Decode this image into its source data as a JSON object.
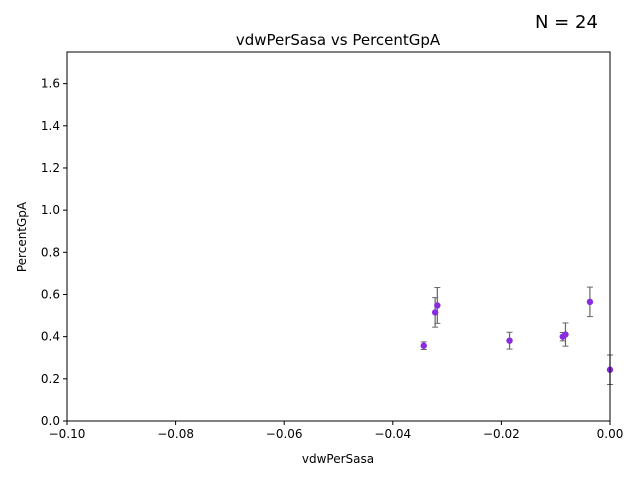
{
  "annotation": "N = 24",
  "chart_data": {
    "type": "scatter",
    "title": "vdwPerSasa vs PercentGpA",
    "xlabel": "vdwPerSasa",
    "ylabel": "PercentGpA",
    "xlim": [
      -0.1,
      0.0
    ],
    "ylim": [
      0.0,
      1.75
    ],
    "xticks": [
      -0.1,
      -0.08,
      -0.06,
      -0.04,
      -0.02,
      0.0
    ],
    "xtick_labels": [
      "−0.10",
      "−0.08",
      "−0.06",
      "−0.04",
      "−0.02",
      "0.00"
    ],
    "yticks": [
      0.0,
      0.2,
      0.4,
      0.6,
      0.8,
      1.0,
      1.2,
      1.4,
      1.6
    ],
    "ytick_labels": [
      "0.0",
      "0.2",
      "0.4",
      "0.6",
      "0.8",
      "1.0",
      "1.2",
      "1.4",
      "1.6"
    ],
    "grid": false,
    "points": [
      {
        "x": -0.0343,
        "y": 0.357,
        "err": 0.018
      },
      {
        "x": -0.0322,
        "y": 0.515,
        "err": 0.07
      },
      {
        "x": -0.0318,
        "y": 0.548,
        "err": 0.085
      },
      {
        "x": -0.0185,
        "y": 0.381,
        "err": 0.04
      },
      {
        "x": -0.0087,
        "y": 0.4,
        "err": 0.02
      },
      {
        "x": -0.0082,
        "y": 0.41,
        "err": 0.055
      },
      {
        "x": -0.0037,
        "y": 0.565,
        "err": 0.07
      },
      {
        "x": 0.0,
        "y": 0.243,
        "err": 0.07
      }
    ],
    "colors": {
      "marker": "#8a2be2",
      "errorbar": "#666666",
      "axis": "#000000"
    }
  }
}
